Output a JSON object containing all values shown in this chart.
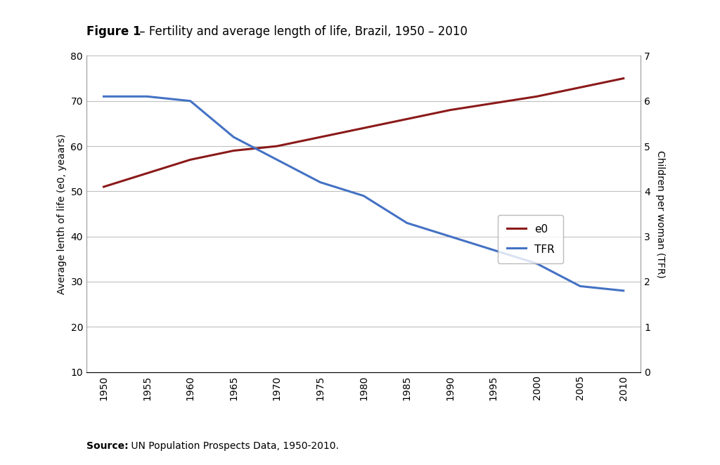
{
  "title_bold": "Figure 1",
  "title_normal": " – Fertility and average length of life, Brazil, 1950 – 2010",
  "source_bold": "Source:",
  "source_normal": " UN Population Prospects Data, 1950-2010.",
  "years": [
    1950,
    1955,
    1960,
    1965,
    1970,
    1975,
    1980,
    1985,
    1990,
    1995,
    2000,
    2005,
    2010
  ],
  "e0": [
    51,
    54,
    57,
    59,
    60,
    62,
    64,
    66,
    68,
    69.5,
    71,
    73,
    75
  ],
  "tfr_left": [
    71,
    71,
    70,
    62,
    57,
    52,
    49,
    43,
    40,
    37,
    34,
    29,
    28
  ],
  "e0_color": "#8B1A1A",
  "tfr_color": "#4472C4",
  "left_ylabel": "Average lenth of life (e0, yeaars)",
  "right_ylabel": "Children per woman (TFR)",
  "left_ylim": [
    10,
    80
  ],
  "left_yticks": [
    10,
    20,
    30,
    40,
    50,
    60,
    70,
    80
  ],
  "right_ylim": [
    0,
    7
  ],
  "right_yticks": [
    0,
    1,
    2,
    3,
    4,
    5,
    6,
    7
  ],
  "xlim": [
    1948,
    2012
  ],
  "xticks": [
    1950,
    1955,
    1960,
    1965,
    1970,
    1975,
    1980,
    1985,
    1990,
    1995,
    2000,
    2005,
    2010
  ],
  "grid_color": "#C0C0C0",
  "background_color": "#FFFFFF",
  "line_width": 2.2,
  "legend_e0": "e0",
  "legend_tfr": "TFR",
  "title_fontsize": 12,
  "axis_fontsize": 10,
  "tick_fontsize": 10,
  "source_fontsize": 10
}
